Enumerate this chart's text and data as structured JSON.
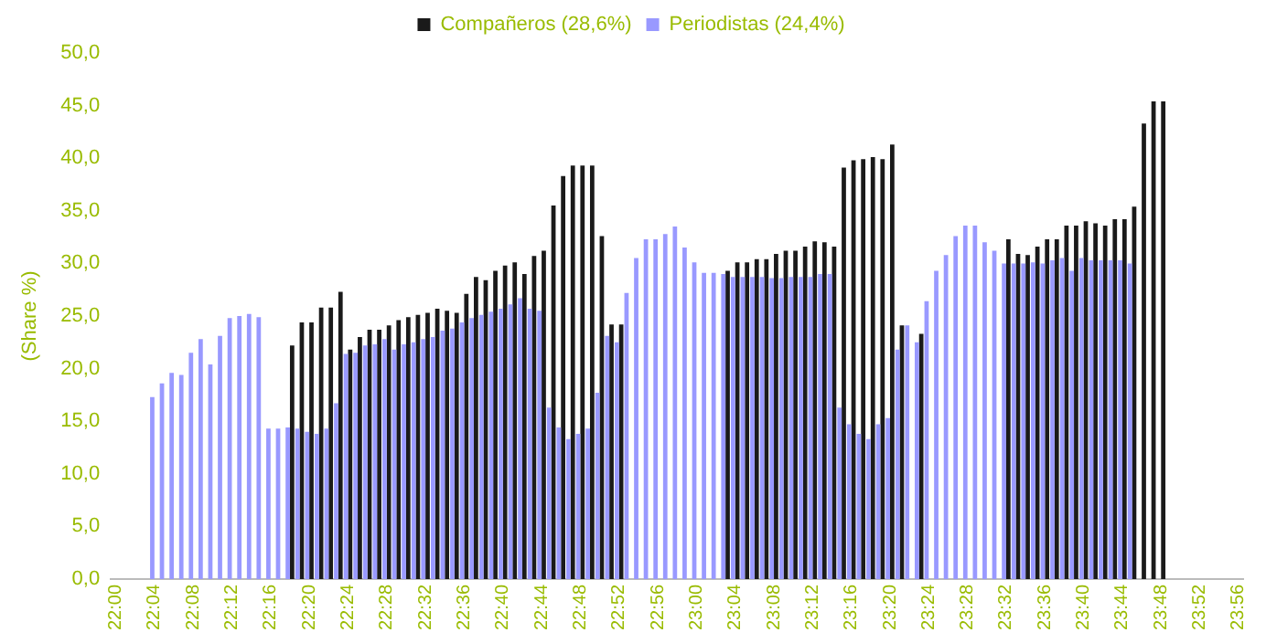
{
  "chart_data": {
    "type": "bar",
    "ylabel": "(Share %)",
    "legend": "top",
    "grid": false,
    "categories": [
      "22:00",
      null,
      null,
      null,
      "22:04",
      null,
      null,
      null,
      "22:08",
      null,
      null,
      null,
      "22:12",
      null,
      null,
      null,
      "22:16",
      null,
      null,
      null,
      "22:20",
      null,
      null,
      null,
      "22:24",
      null,
      null,
      null,
      "22:28",
      null,
      null,
      null,
      "22:32",
      null,
      null,
      null,
      "22:36",
      null,
      null,
      null,
      "22:40",
      null,
      null,
      null,
      "22:44",
      null,
      null,
      null,
      "22:48",
      null,
      null,
      null,
      "22:52",
      null,
      null,
      null,
      "22:56",
      null,
      null,
      null,
      "23:00",
      null,
      null,
      null,
      "23:04",
      null,
      null,
      null,
      "23:08",
      null,
      null,
      null,
      "23:12",
      null,
      null,
      null,
      "23:16",
      null,
      null,
      null,
      "23:20",
      null,
      null,
      null,
      "23:24",
      null,
      null,
      null,
      "23:28",
      null,
      null,
      null,
      "23:32",
      null,
      null,
      null,
      "23:36",
      null,
      null,
      null,
      "23:40",
      null,
      null,
      null,
      "23:44",
      null,
      null,
      null,
      "23:48",
      null,
      null,
      null,
      "23:52",
      null,
      null,
      null,
      "23:56"
    ],
    "ylim": [
      0,
      50
    ],
    "yticks": [
      {
        "value": 0,
        "label": "0,0"
      },
      {
        "value": 5,
        "label": "5,0"
      },
      {
        "value": 10,
        "label": "10,0"
      },
      {
        "value": 15,
        "label": "15,0"
      },
      {
        "value": 20,
        "label": "20,0"
      },
      {
        "value": 25,
        "label": "25,0"
      },
      {
        "value": 30,
        "label": "30,0"
      },
      {
        "value": 35,
        "label": "35,0"
      },
      {
        "value": 40,
        "label": "40,0"
      },
      {
        "value": 45,
        "label": "45,0"
      },
      {
        "value": 50,
        "label": "50,0"
      }
    ],
    "series": [
      {
        "name": "Compañeros (28,6%)",
        "color": "#1a1a1a",
        "values": [
          null,
          null,
          null,
          null,
          null,
          null,
          null,
          null,
          null,
          null,
          null,
          null,
          null,
          null,
          null,
          null,
          null,
          null,
          22.2,
          24.4,
          24.4,
          25.8,
          25.8,
          27.3,
          21.8,
          23.0,
          23.7,
          23.7,
          24.1,
          24.6,
          24.9,
          25.1,
          25.3,
          25.7,
          25.5,
          25.3,
          27.1,
          28.7,
          28.4,
          29.3,
          29.8,
          30.1,
          29.0,
          30.7,
          31.2,
          35.5,
          38.3,
          39.3,
          39.3,
          39.3,
          32.6,
          24.2,
          24.2,
          null,
          null,
          null,
          null,
          null,
          null,
          null,
          null,
          null,
          null,
          29.3,
          30.1,
          30.1,
          30.4,
          30.4,
          30.9,
          31.2,
          31.2,
          31.6,
          32.1,
          32.0,
          31.6,
          39.1,
          39.8,
          39.9,
          40.1,
          39.9,
          41.3,
          24.1,
          null,
          23.3,
          null,
          null,
          null,
          null,
          null,
          null,
          null,
          null,
          32.3,
          30.9,
          30.8,
          31.6,
          32.3,
          32.3,
          33.6,
          33.6,
          34.0,
          33.8,
          33.6,
          34.2,
          34.2,
          35.4,
          43.3,
          45.4,
          45.4,
          null,
          null,
          null,
          null,
          null,
          null,
          null,
          null
        ]
      },
      {
        "name": "Periodistas (24,4%)",
        "color": "#9999ff",
        "values": [
          null,
          null,
          null,
          null,
          17.3,
          18.6,
          19.6,
          19.4,
          21.5,
          22.8,
          20.4,
          23.1,
          24.8,
          25.0,
          25.2,
          24.9,
          14.3,
          14.3,
          14.4,
          14.3,
          14.0,
          13.8,
          14.3,
          16.7,
          21.4,
          21.5,
          22.2,
          22.3,
          22.8,
          21.8,
          22.3,
          22.5,
          22.8,
          23.0,
          23.6,
          23.8,
          24.4,
          24.8,
          25.1,
          25.4,
          25.7,
          26.1,
          26.7,
          25.7,
          25.5,
          16.3,
          14.4,
          13.3,
          13.8,
          14.3,
          17.7,
          23.1,
          22.5,
          27.2,
          30.5,
          32.3,
          32.3,
          32.8,
          33.5,
          31.5,
          30.1,
          29.1,
          29.1,
          29.0,
          28.7,
          28.7,
          28.7,
          28.7,
          28.6,
          28.6,
          28.7,
          28.7,
          28.7,
          29.0,
          29.0,
          16.3,
          14.7,
          13.8,
          13.3,
          14.7,
          15.3,
          21.8,
          24.1,
          22.5,
          26.4,
          29.3,
          30.8,
          32.6,
          33.6,
          33.6,
          32.0,
          31.2,
          30.0,
          30.0,
          30.0,
          30.1,
          30.0,
          30.3,
          30.5,
          29.3,
          30.5,
          30.3,
          30.3,
          30.3,
          30.3,
          30.0,
          null,
          null,
          null,
          null,
          null,
          null,
          null,
          null,
          null,
          null,
          null
        ]
      }
    ]
  }
}
